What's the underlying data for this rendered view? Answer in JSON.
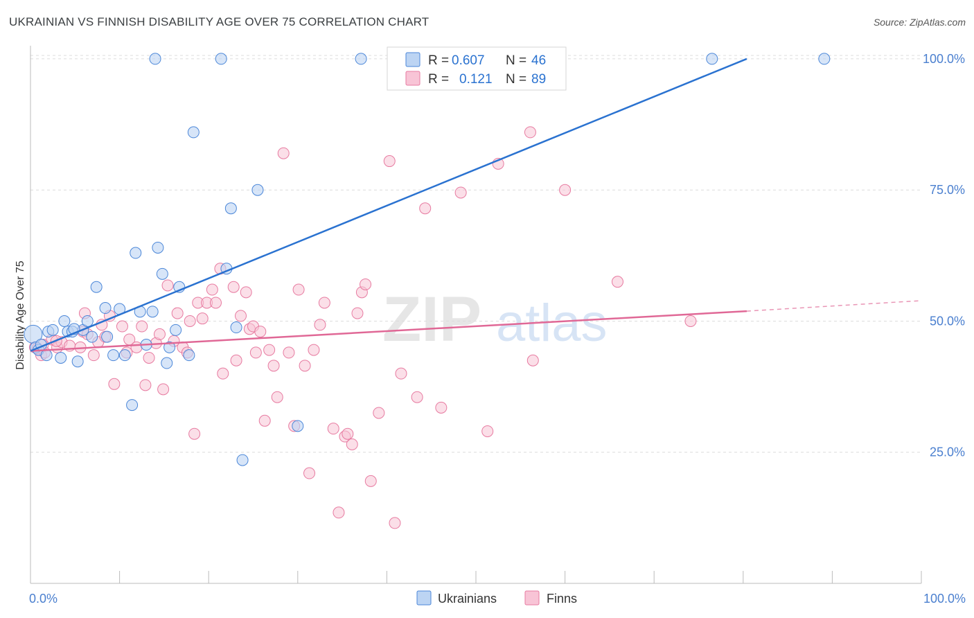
{
  "title": "UKRAINIAN VS FINNISH DISABILITY AGE OVER 75 CORRELATION CHART",
  "source": "Source: ZipAtlas.com",
  "watermark": {
    "bold": "ZIP",
    "light": "atlas"
  },
  "colors": {
    "blue": "#4a86d8",
    "blue_fill": "#bcd4f3",
    "blue_line": "#2a72d0",
    "pink": "#e77aa0",
    "pink_fill": "#f8c4d6",
    "pink_line": "#e06896",
    "axis_text": "#4a7fcf",
    "grid": "#dcdcdc"
  },
  "legend": {
    "rows": [
      {
        "r_label": "R =",
        "r_value": "0.607",
        "n_label": "N =",
        "n_value": "46"
      },
      {
        "r_label": "R =",
        "r_value": "0.121",
        "n_label": "N =",
        "n_value": "89"
      }
    ]
  },
  "chart_data": {
    "type": "scatter",
    "title": "UKRAINIAN VS FINNISH DISABILITY AGE OVER 75 CORRELATION CHART",
    "xlabel": "",
    "ylabel": "Disability Age Over 75",
    "xlim": [
      0,
      100
    ],
    "ylim": [
      0,
      102.5
    ],
    "x_tick_labels": [
      "0.0%",
      "100.0%"
    ],
    "y_ticks": [
      25,
      50,
      75,
      100
    ],
    "y_tick_labels": [
      "25.0%",
      "50.0%",
      "75.0%",
      "100.0%"
    ],
    "grid": true,
    "legend_position": "bottom-center",
    "series": [
      {
        "name": "Ukrainians",
        "color": "#4a86d8",
        "r": 0.607,
        "n": 46,
        "trend": {
          "x": [
            0,
            80.4
          ],
          "y": [
            44.3,
            100.0
          ]
        },
        "points": [
          [
            0.3,
            47.5
          ],
          [
            0.6,
            45.0
          ],
          [
            0.9,
            44.5
          ],
          [
            1.2,
            45.5
          ],
          [
            2.0,
            48.0
          ],
          [
            2.5,
            48.3
          ],
          [
            3.4,
            43.0
          ],
          [
            3.8,
            50.0
          ],
          [
            4.2,
            48.0
          ],
          [
            4.7,
            48.0
          ],
          [
            5.3,
            42.3
          ],
          [
            5.9,
            48.3
          ],
          [
            6.4,
            50.0
          ],
          [
            6.9,
            47.0
          ],
          [
            7.4,
            56.5
          ],
          [
            8.4,
            52.5
          ],
          [
            8.6,
            47.0
          ],
          [
            9.3,
            43.5
          ],
          [
            10.0,
            52.3
          ],
          [
            10.6,
            43.5
          ],
          [
            11.4,
            34.0
          ],
          [
            11.8,
            63.0
          ],
          [
            12.3,
            51.8
          ],
          [
            13.0,
            45.5
          ],
          [
            13.7,
            51.8
          ],
          [
            14.0,
            100.0
          ],
          [
            14.3,
            64.0
          ],
          [
            14.8,
            59.0
          ],
          [
            15.3,
            42.0
          ],
          [
            15.6,
            45.0
          ],
          [
            16.3,
            48.3
          ],
          [
            16.7,
            56.5
          ],
          [
            17.8,
            43.5
          ],
          [
            18.3,
            86.0
          ],
          [
            21.4,
            100.0
          ],
          [
            22.0,
            60.0
          ],
          [
            22.5,
            71.5
          ],
          [
            23.1,
            48.8
          ],
          [
            23.8,
            23.5
          ],
          [
            25.5,
            75.0
          ],
          [
            30.0,
            30.0
          ],
          [
            37.1,
            100.0
          ],
          [
            76.5,
            100.0
          ],
          [
            89.1,
            100.0
          ],
          [
            1.8,
            43.5
          ],
          [
            4.9,
            48.5
          ]
        ]
      },
      {
        "name": "Finns",
        "color": "#e77aa0",
        "r": 0.121,
        "n": 89,
        "trend": {
          "x": [
            0,
            80.4
          ],
          "y": [
            44.3,
            51.9
          ]
        },
        "trend_dashed": {
          "x": [
            80.4,
            100
          ],
          "y": [
            51.9,
            53.9
          ]
        },
        "points": [
          [
            0.5,
            45.0
          ],
          [
            1.2,
            43.5
          ],
          [
            1.6,
            44.0
          ],
          [
            2.4,
            46.5
          ],
          [
            3.0,
            45.0
          ],
          [
            3.5,
            46.0
          ],
          [
            4.4,
            45.3
          ],
          [
            5.6,
            45.0
          ],
          [
            5.9,
            48.0
          ],
          [
            6.1,
            51.5
          ],
          [
            6.4,
            47.5
          ],
          [
            7.1,
            43.5
          ],
          [
            7.6,
            46.0
          ],
          [
            8.0,
            49.3
          ],
          [
            8.4,
            47.0
          ],
          [
            8.9,
            51.0
          ],
          [
            9.4,
            38.0
          ],
          [
            10.3,
            49.0
          ],
          [
            10.8,
            44.0
          ],
          [
            11.1,
            46.5
          ],
          [
            11.9,
            45.0
          ],
          [
            12.5,
            49.0
          ],
          [
            12.9,
            37.8
          ],
          [
            13.3,
            43.0
          ],
          [
            14.1,
            45.8
          ],
          [
            14.5,
            47.5
          ],
          [
            14.9,
            37.0
          ],
          [
            15.4,
            56.8
          ],
          [
            16.1,
            46.2
          ],
          [
            16.5,
            51.5
          ],
          [
            17.1,
            45.0
          ],
          [
            17.6,
            44.0
          ],
          [
            17.9,
            50.0
          ],
          [
            18.4,
            28.5
          ],
          [
            18.8,
            53.5
          ],
          [
            19.3,
            50.5
          ],
          [
            19.8,
            53.5
          ],
          [
            20.4,
            56.0
          ],
          [
            20.8,
            53.5
          ],
          [
            21.3,
            60.0
          ],
          [
            21.6,
            40.0
          ],
          [
            22.8,
            56.5
          ],
          [
            23.1,
            42.5
          ],
          [
            23.6,
            51.0
          ],
          [
            24.2,
            55.5
          ],
          [
            24.6,
            48.5
          ],
          [
            25.0,
            49.0
          ],
          [
            25.3,
            44.0
          ],
          [
            25.8,
            48.0
          ],
          [
            26.3,
            31.0
          ],
          [
            26.8,
            44.5
          ],
          [
            27.3,
            41.5
          ],
          [
            27.7,
            35.5
          ],
          [
            28.4,
            82.0
          ],
          [
            29.0,
            44.0
          ],
          [
            29.6,
            30.0
          ],
          [
            30.1,
            56.0
          ],
          [
            30.8,
            41.5
          ],
          [
            31.3,
            21.0
          ],
          [
            31.8,
            44.5
          ],
          [
            32.5,
            49.3
          ],
          [
            33.0,
            53.5
          ],
          [
            34.0,
            29.5
          ],
          [
            34.6,
            13.5
          ],
          [
            35.3,
            28.0
          ],
          [
            35.6,
            28.5
          ],
          [
            36.1,
            26.5
          ],
          [
            36.7,
            51.5
          ],
          [
            37.2,
            55.5
          ],
          [
            37.6,
            57.0
          ],
          [
            38.2,
            19.5
          ],
          [
            39.1,
            32.5
          ],
          [
            40.3,
            80.5
          ],
          [
            40.9,
            11.5
          ],
          [
            41.6,
            40.0
          ],
          [
            43.4,
            35.5
          ],
          [
            44.3,
            71.5
          ],
          [
            46.1,
            33.5
          ],
          [
            48.3,
            74.5
          ],
          [
            51.3,
            29.0
          ],
          [
            52.5,
            80.0
          ],
          [
            56.1,
            86.0
          ],
          [
            56.4,
            42.5
          ],
          [
            60.0,
            75.0
          ],
          [
            65.9,
            57.5
          ],
          [
            74.1,
            50.0
          ],
          [
            0.8,
            44.8
          ],
          [
            2.9,
            46.2
          ],
          [
            1.4,
            45.5
          ]
        ]
      }
    ]
  }
}
